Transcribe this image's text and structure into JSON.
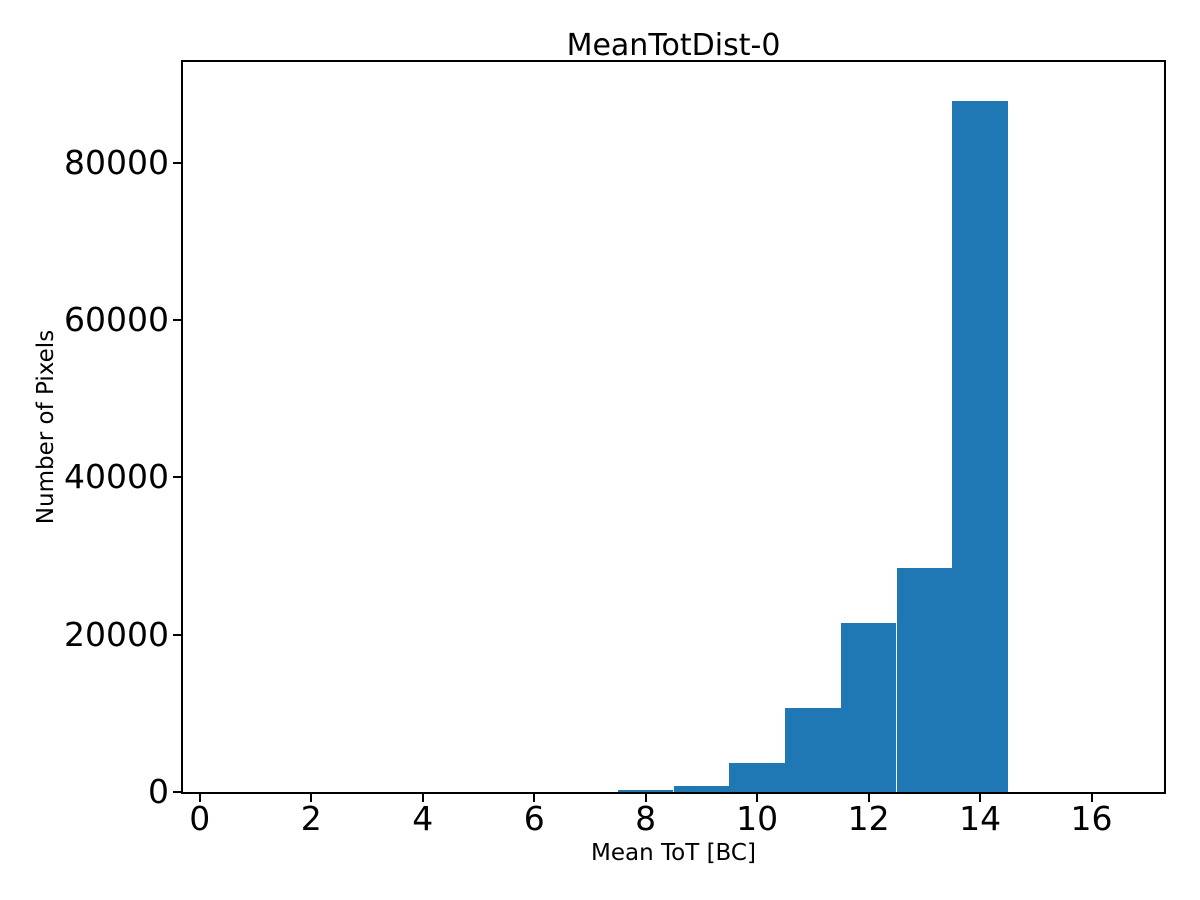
{
  "chart_data": {
    "type": "bar",
    "subtype": "histogram",
    "title": "MeanTotDist-0",
    "xlabel": "Mean ToT [BC]",
    "ylabel": "Number of Pixels",
    "xlim": [
      -0.3,
      17.3
    ],
    "ylim": [
      0,
      92800
    ],
    "x_ticks": [
      0,
      2,
      4,
      6,
      8,
      10,
      12,
      14,
      16
    ],
    "y_ticks": [
      0,
      20000,
      40000,
      60000,
      80000
    ],
    "grid": false,
    "legend": false,
    "bar_color": "#1f77b4",
    "axis_color": "#000000",
    "background_color": "#ffffff",
    "bin_width": 1,
    "bins": [
      {
        "from": 7.5,
        "to": 8.5,
        "count": 250
      },
      {
        "from": 8.5,
        "to": 9.5,
        "count": 800
      },
      {
        "from": 9.5,
        "to": 10.5,
        "count": 3700
      },
      {
        "from": 10.5,
        "to": 11.5,
        "count": 10700
      },
      {
        "from": 11.5,
        "to": 12.5,
        "count": 21500
      },
      {
        "from": 12.5,
        "to": 13.5,
        "count": 28500
      },
      {
        "from": 13.5,
        "to": 14.5,
        "count": 87800
      }
    ]
  }
}
